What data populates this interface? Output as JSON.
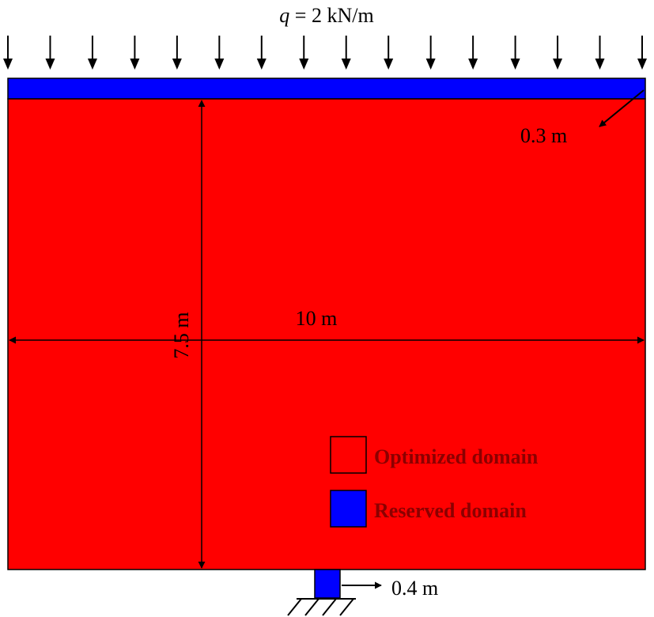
{
  "load": {
    "symbol": "q",
    "value_text": " = 2 kN/m",
    "arrow_count": 16
  },
  "dimensions": {
    "reserved_thickness": "0.3 m",
    "height": "7.5 m",
    "width": "10 m",
    "support_width": "0.4 m"
  },
  "legend": {
    "items": [
      {
        "label": "Optimized domain",
        "color": "#ff0000"
      },
      {
        "label": "Reserved domain",
        "color": "#0000ff"
      }
    ]
  },
  "colors": {
    "optimized": "#ff0000",
    "reserved": "#0000ff",
    "legend_text": "#8b0000",
    "line": "#000000"
  }
}
